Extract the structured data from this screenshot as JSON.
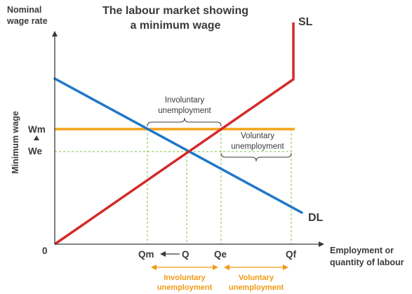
{
  "title": {
    "line1": "The labour market showing",
    "line2": "a minimum wage"
  },
  "axes": {
    "y_label_line1": "Nominal",
    "y_label_line2": "wage rate",
    "y_side_label": "Minimum wage",
    "x_label_line1": "Employment or",
    "x_label_line2": "quantity of labour",
    "origin": "0"
  },
  "y_ticks": {
    "wm": "Wm",
    "we": "We"
  },
  "x_ticks": {
    "qm": "Qm",
    "q": "Q",
    "qe": "Qe",
    "qf": "Qf"
  },
  "curves": {
    "supply": "SL",
    "demand": "DL"
  },
  "annotations": {
    "involuntary_line1": "Involuntary",
    "involuntary_line2": "unemployment",
    "voluntary_line1": "Voluntary",
    "voluntary_line2": "unemployment",
    "bottom_involuntary_line1": "Involuntary",
    "bottom_involuntary_line2": "unemployment",
    "bottom_voluntary_line1": "Voluntary",
    "bottom_voluntary_line2": "unemployment"
  },
  "colors": {
    "demand": "#1f78c8",
    "supply": "#d42a2a",
    "minimum_wage": "#f5a21b",
    "guides": "#7cc242",
    "axis": "#3a3a3a",
    "orange_annotation": "#f19a14"
  }
}
